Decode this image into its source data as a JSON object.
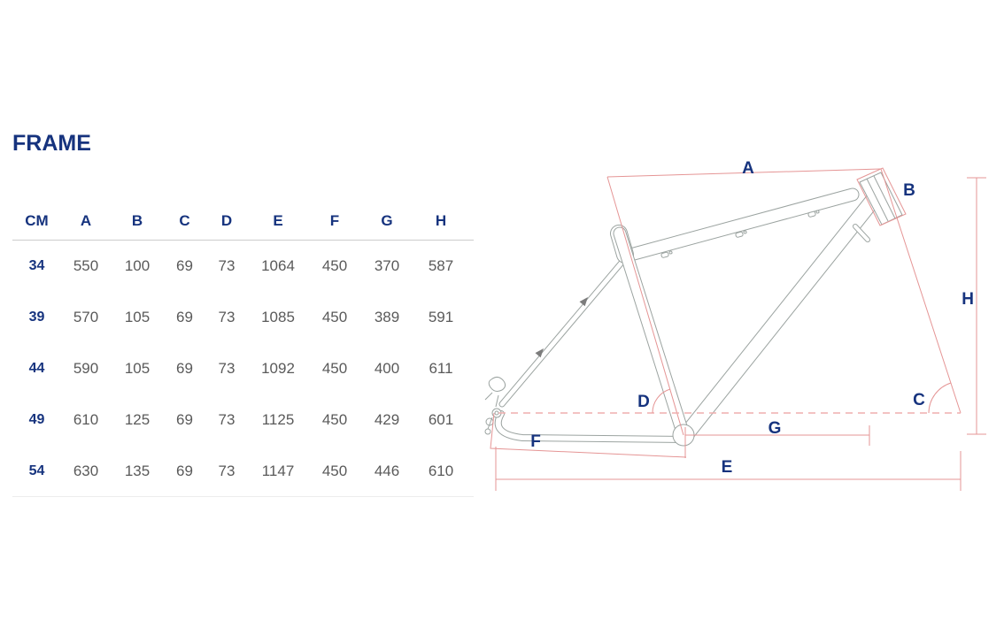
{
  "title": "FRAME",
  "table": {
    "unit_header": "CM",
    "columns": [
      "A",
      "B",
      "C",
      "D",
      "E",
      "F",
      "G",
      "H"
    ],
    "rows": [
      {
        "size": "34",
        "values": [
          "550",
          "100",
          "69",
          "73",
          "1064",
          "450",
          "370",
          "587"
        ]
      },
      {
        "size": "39",
        "values": [
          "570",
          "105",
          "69",
          "73",
          "1085",
          "450",
          "389",
          "591"
        ]
      },
      {
        "size": "44",
        "values": [
          "590",
          "105",
          "69",
          "73",
          "1092",
          "450",
          "400",
          "611"
        ]
      },
      {
        "size": "49",
        "values": [
          "610",
          "125",
          "69",
          "73",
          "1125",
          "450",
          "429",
          "601"
        ]
      },
      {
        "size": "54",
        "values": [
          "630",
          "135",
          "69",
          "73",
          "1147",
          "450",
          "446",
          "610"
        ]
      }
    ]
  },
  "diagram": {
    "labels": {
      "A": "A",
      "B": "B",
      "C": "C",
      "D": "D",
      "E": "E",
      "F": "F",
      "G": "G",
      "H": "H"
    }
  },
  "colors": {
    "navy": "#16337e",
    "gray": "#5a5a5a",
    "pink": "#e59595",
    "pinklight": "#efaeae",
    "frame": "#9ba3a0",
    "sep": "#cccccc",
    "sepfaint": "#ededed"
  }
}
